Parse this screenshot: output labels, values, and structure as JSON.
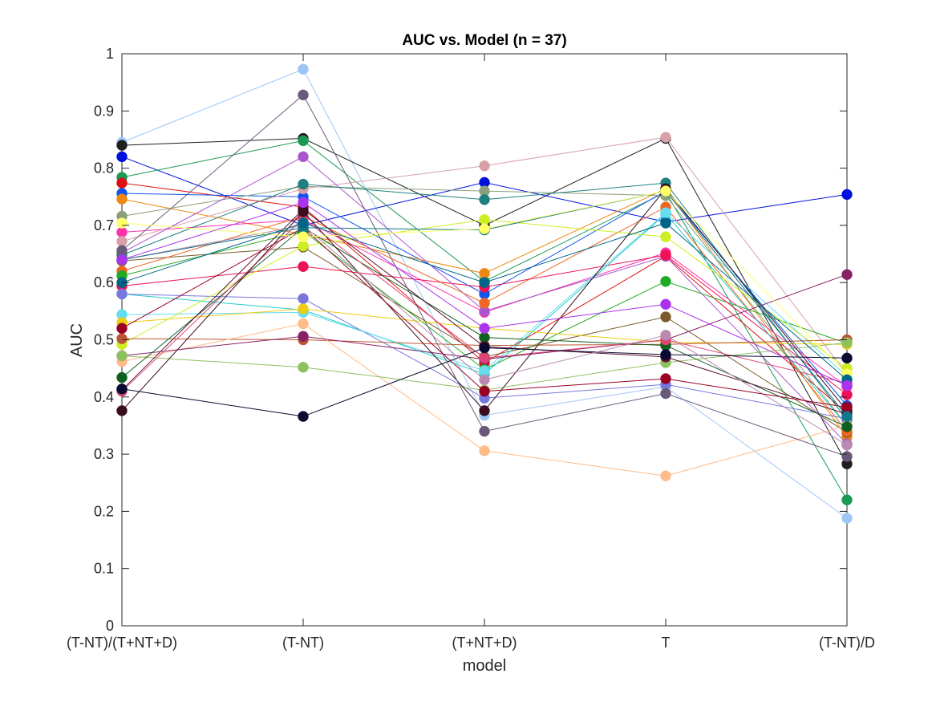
{
  "chart_data": {
    "type": "line",
    "title": "AUC vs. Model (n = 37)",
    "xlabel": "model",
    "ylabel": "AUC",
    "categories": [
      "(T-NT)/(T+NT+D)",
      "(T-NT)",
      "(T+NT+D)",
      "T",
      "(T-NT)/D"
    ],
    "ylim": [
      0,
      1
    ],
    "yticks": [
      "0",
      "0.1",
      "0.2",
      "0.3",
      "0.4",
      "0.5",
      "0.6",
      "0.7",
      "0.8",
      "0.9",
      "1"
    ],
    "grid": false,
    "legend": "none",
    "series": [
      {
        "color": "#9ec5f7",
        "values": [
          0.845,
          0.973,
          0.368,
          0.418,
          0.188
        ]
      },
      {
        "color": "#1f1f1f",
        "values": [
          0.84,
          0.852,
          0.7,
          0.852,
          0.283
        ]
      },
      {
        "color": "#0011dd",
        "values": [
          0.82,
          0.7,
          0.775,
          0.706,
          0.754
        ]
      },
      {
        "color": "#1a9955",
        "values": [
          0.784,
          0.848,
          0.602,
          0.758,
          0.22
        ]
      },
      {
        "color": "#dd1111",
        "values": [
          0.774,
          0.732,
          0.46,
          0.646,
          0.372
        ]
      },
      {
        "color": "#1155ee",
        "values": [
          0.756,
          0.75,
          0.58,
          0.76,
          0.385
        ]
      },
      {
        "color": "#ee8811",
        "values": [
          0.746,
          0.684,
          0.616,
          0.764,
          0.33
        ]
      },
      {
        "color": "#8aa07a",
        "values": [
          0.716,
          0.768,
          0.76,
          0.752,
          0.35
        ]
      },
      {
        "color": "#ff33aa",
        "values": [
          0.688,
          0.71,
          0.548,
          0.652,
          0.418
        ]
      },
      {
        "color": "#d8a0a8",
        "values": [
          0.672,
          0.764,
          0.804,
          0.854,
          0.44
        ]
      },
      {
        "color": "#aa55cc",
        "values": [
          0.652,
          0.82,
          0.55,
          0.646,
          0.318
        ]
      },
      {
        "color": "#1f7f7f",
        "values": [
          0.648,
          0.772,
          0.745,
          0.774,
          0.36
        ]
      },
      {
        "color": "#7a5a2a",
        "values": [
          0.638,
          0.662,
          0.47,
          0.54,
          0.338
        ]
      },
      {
        "color": "#ee6622",
        "values": [
          0.62,
          0.716,
          0.564,
          0.732,
          0.34
        ]
      },
      {
        "color": "#22aa22",
        "values": [
          0.612,
          0.69,
          0.448,
          0.602,
          0.494
        ]
      },
      {
        "color": "#ee1155",
        "values": [
          0.594,
          0.628,
          0.592,
          0.648,
          0.404
        ]
      },
      {
        "color": "#22cccc",
        "values": [
          0.58,
          0.552,
          0.44,
          0.72,
          0.35
        ]
      },
      {
        "color": "#7777dd",
        "values": [
          0.58,
          0.572,
          0.398,
          0.422,
          0.362
        ]
      },
      {
        "color": "#66ddee",
        "values": [
          0.544,
          0.548,
          0.446,
          0.722,
          0.436
        ]
      },
      {
        "color": "#eecc11",
        "values": [
          0.53,
          0.554,
          0.52,
          0.496,
          0.492
        ]
      },
      {
        "color": "#ccee22",
        "values": [
          0.492,
          0.664,
          0.71,
          0.68,
          0.45
        ]
      },
      {
        "color": "#bb5533",
        "values": [
          0.502,
          0.5,
          0.49,
          0.492,
          0.5
        ]
      },
      {
        "color": "#ffbb88",
        "values": [
          0.462,
          0.528,
          0.306,
          0.262,
          0.35
        ]
      },
      {
        "color": "#882266",
        "values": [
          0.472,
          0.506,
          0.466,
          0.5,
          0.614
        ]
      },
      {
        "color": "#8fc060",
        "values": [
          0.472,
          0.452,
          0.412,
          0.46,
          0.495
        ]
      },
      {
        "color": "#0f5f1f",
        "values": [
          0.434,
          0.696,
          0.504,
          0.49,
          0.348
        ]
      },
      {
        "color": "#5a1030",
        "values": [
          0.412,
          0.728,
          0.488,
          0.47,
          0.37
        ]
      },
      {
        "color": "#dd4477",
        "values": [
          0.41,
          0.712,
          0.468,
          0.5,
          0.424
        ]
      },
      {
        "color": "#0a0a33",
        "values": [
          0.414,
          0.366,
          0.486,
          0.474,
          0.468
        ]
      },
      {
        "color": "#3a0e1e",
        "values": [
          0.376,
          0.724,
          0.376,
          0.764,
          0.376
        ]
      },
      {
        "color": "#6a5a7a",
        "values": [
          0.656,
          0.928,
          0.34,
          0.406,
          0.296
        ]
      },
      {
        "color": "#bb8ab0",
        "values": [
          0.64,
          0.7,
          0.43,
          0.508,
          0.316
        ]
      },
      {
        "color": "#990022",
        "values": [
          0.52,
          0.696,
          0.41,
          0.432,
          0.382
        ]
      },
      {
        "color": "#117788",
        "values": [
          0.64,
          0.696,
          0.692,
          0.76,
          0.366
        ]
      },
      {
        "color": "#ffff66",
        "values": [
          0.704,
          0.68,
          0.694,
          0.76,
          0.44
        ]
      },
      {
        "color": "#006688",
        "values": [
          0.6,
          0.704,
          0.6,
          0.704,
          0.43
        ]
      },
      {
        "color": "#aa33ee",
        "values": [
          0.64,
          0.74,
          0.52,
          0.562,
          0.42
        ]
      }
    ]
  }
}
